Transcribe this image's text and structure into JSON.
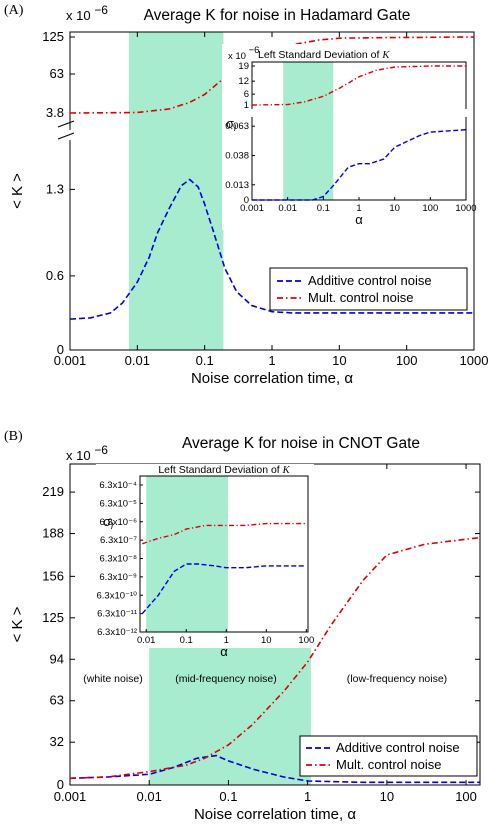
{
  "colors": {
    "shade": "#a8ecd0",
    "additive": "#0000dd",
    "mult": "#dd0000"
  },
  "chart_data": [
    {
      "panel_label": "(A)",
      "type": "line",
      "title": "Average K for noise in Hadamard Gate",
      "scale_label": "x 10",
      "scale_exp": "−6",
      "xlabel": "Noise correlation time, α",
      "ylabel": "< K >",
      "xscale": "log",
      "xlim": [
        0.001,
        1000
      ],
      "x_ticks": [
        "0.001",
        "0.01",
        "0.1",
        "1",
        "10",
        "100",
        "1000"
      ],
      "y_ticks_lower": [
        "0",
        "0.6",
        "1.3"
      ],
      "y_ticks_upper": [
        "3.8",
        "63",
        "125"
      ],
      "shaded_region": [
        0.0075,
        0.19
      ],
      "legend_placement": "lower-right",
      "series": [
        {
          "name": "Additive control noise",
          "style": "dashed",
          "x": [
            0.001,
            0.002,
            0.004,
            0.006,
            0.01,
            0.015,
            0.02,
            0.03,
            0.045,
            0.06,
            0.08,
            0.1,
            0.15,
            0.2,
            0.3,
            0.5,
            1,
            2,
            5,
            10,
            100,
            1000
          ],
          "y": [
            0.25,
            0.26,
            0.3,
            0.38,
            0.55,
            0.75,
            0.95,
            1.15,
            1.33,
            1.38,
            1.32,
            1.18,
            0.88,
            0.66,
            0.47,
            0.36,
            0.31,
            0.3,
            0.3,
            0.3,
            0.3,
            0.3
          ]
        },
        {
          "name": "Mult. control noise",
          "style": "dash-dot",
          "x": [
            0.001,
            0.01,
            0.03,
            0.06,
            0.1,
            0.2,
            0.5,
            1,
            2,
            5,
            10,
            50,
            1000
          ],
          "y": [
            3.8,
            4.5,
            10,
            20,
            32,
            58,
            85,
            100,
            112,
            120,
            123,
            124,
            125
          ]
        }
      ],
      "inset": {
        "title": "Left Standard Deviation of",
        "title_var": "K",
        "ylabel": "σ",
        "ylabel_sub": "l",
        "xlabel": "α",
        "scale_label": "x 10",
        "scale_exp": "−6",
        "x_ticks": [
          "0.001",
          "0.01",
          "0.1",
          "1",
          "10",
          "100",
          "1000"
        ],
        "y_ticks_lower": [
          "0",
          "0.013",
          "0.038",
          "0.063"
        ],
        "y_ticks_upper": [
          "1",
          "6",
          "12",
          "19"
        ],
        "shaded_region": [
          0.0075,
          0.19
        ],
        "additive": {
          "x": [
            0.001,
            0.01,
            0.05,
            0.1,
            0.2,
            0.5,
            1,
            2,
            5,
            10,
            50,
            100,
            1000
          ],
          "y": [
            0,
            0,
            0,
            0.003,
            0.013,
            0.028,
            0.031,
            0.031,
            0.035,
            0.045,
            0.055,
            0.058,
            0.06
          ]
        },
        "mult": {
          "x": [
            0.001,
            0.01,
            0.03,
            0.1,
            0.3,
            1,
            3,
            10,
            100,
            1000
          ],
          "y": [
            1,
            1.2,
            2.5,
            5,
            9,
            14,
            17,
            18.5,
            19,
            19
          ]
        }
      }
    },
    {
      "panel_label": "(B)",
      "type": "line",
      "title": "Average K for noise in CNOT Gate",
      "scale_label": "x 10",
      "scale_exp": "−6",
      "xlabel": "Noise correlation time, α",
      "ylabel": "< K >",
      "xscale": "log",
      "xlim": [
        0.001,
        150
      ],
      "ylim": [
        0,
        240
      ],
      "x_ticks": [
        "0.001",
        "0.01",
        "0.1",
        "1",
        "10",
        "100"
      ],
      "y_ticks": [
        "0",
        "32",
        "63",
        "94",
        "125",
        "156",
        "188",
        "219"
      ],
      "shaded_region": [
        0.01,
        1.1
      ],
      "legend_placement": "lower-right",
      "annotations": [
        "(white noise)",
        "(mid-frequency noise)",
        "(low-frequency noise)"
      ],
      "series": [
        {
          "name": "Additive control noise",
          "style": "dashed",
          "x": [
            0.001,
            0.003,
            0.01,
            0.02,
            0.04,
            0.07,
            0.1,
            0.2,
            0.5,
            1,
            5,
            150
          ],
          "y": [
            5,
            6,
            8,
            13,
            20,
            22,
            18,
            12,
            6,
            3,
            2,
            2
          ]
        },
        {
          "name": "Mult. control noise",
          "style": "dash-dot",
          "x": [
            0.001,
            0.003,
            0.01,
            0.03,
            0.05,
            0.1,
            0.2,
            0.5,
            1,
            2,
            5,
            10,
            30,
            150
          ],
          "y": [
            5,
            6,
            10,
            15,
            20,
            30,
            45,
            70,
            92,
            120,
            153,
            172,
            180,
            185
          ]
        }
      ],
      "inset": {
        "title": "Left Standard Deviation of",
        "title_var": "K",
        "ylabel": "σ",
        "ylabel_sub": "l",
        "xlabel": "α",
        "x_ticks": [
          "0.01",
          "0.1",
          "1",
          "10",
          "100"
        ],
        "y_ticks": [
          "6.3x10⁻⁴",
          "6.3x10⁻⁵",
          "6.3x10⁻⁶",
          "6.3x10⁻⁷",
          "6.3x10⁻⁸",
          "6.3x10⁻⁹",
          "6.3x10⁻¹⁰",
          "6.3x10⁻¹¹",
          "6.3x10⁻¹²"
        ],
        "shaded_region": [
          0.01,
          1.1
        ],
        "additive": {
          "x": [
            0.008,
            0.02,
            0.05,
            0.1,
            0.2,
            0.5,
            1,
            3,
            10,
            100
          ],
          "y": [
            -11,
            -10,
            -8.7,
            -8.3,
            -8.3,
            -8.4,
            -8.5,
            -8.5,
            -8.4,
            -8.4
          ]
        },
        "mult": {
          "x": [
            0.008,
            0.02,
            0.05,
            0.1,
            0.3,
            1,
            3,
            10,
            100
          ],
          "y": [
            -7.2,
            -6.9,
            -6.7,
            -6.4,
            -6.2,
            -6.2,
            -6.2,
            -6.1,
            -6.1
          ]
        }
      }
    }
  ]
}
